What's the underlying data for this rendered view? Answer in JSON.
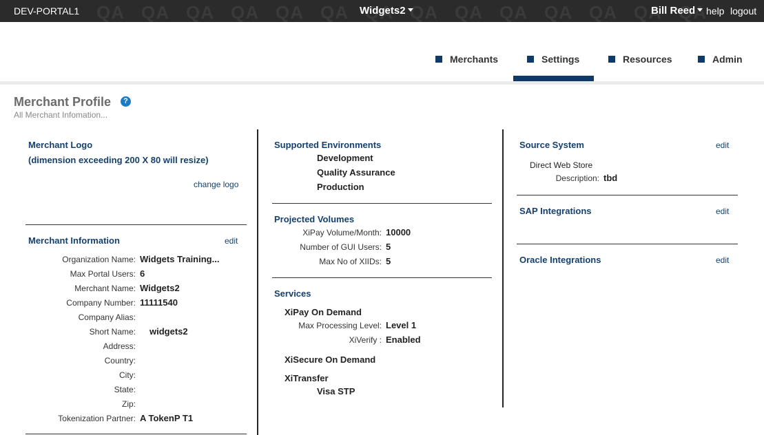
{
  "topbar": {
    "env": "DEV-PORTAL1",
    "watermark": [
      "QA",
      "QA",
      "QA",
      "QA",
      "QA",
      "QA",
      "QA",
      "QA",
      "QA",
      "QA",
      "QA",
      "QA",
      "QA",
      "QA"
    ],
    "app_name": "Widgets2",
    "user_name": "Bill Reed",
    "help": "help",
    "logout": "logout"
  },
  "nav": {
    "merchants": "Merchants",
    "settings": "Settings",
    "resources": "Resources",
    "admin": "Admin",
    "active": "Settings"
  },
  "page": {
    "title": "Merchant Profile",
    "help_glyph": "?",
    "subtitle": "All Merchant Infomation..."
  },
  "logo": {
    "title": "Merchant Logo",
    "note": "(dimension exceeding 200 X 80 will resize)",
    "change": "change logo"
  },
  "merchant_info": {
    "title": "Merchant Information",
    "edit": "edit",
    "fields": [
      {
        "label": "Organization Name:",
        "value": "Widgets Training..."
      },
      {
        "label": "Max Portal Users:",
        "value": "6"
      },
      {
        "label": "Merchant Name:",
        "value": "Widgets2"
      },
      {
        "label": "Company Number:",
        "value": "11111540"
      },
      {
        "label": "Company Alias:",
        "value": ""
      },
      {
        "label": "Short Name:",
        "value": "widgets2"
      },
      {
        "label": "Address:",
        "value": ""
      },
      {
        "label": "Country:",
        "value": ""
      },
      {
        "label": "City:",
        "value": ""
      },
      {
        "label": "State:",
        "value": ""
      },
      {
        "label": "Zip:",
        "value": ""
      },
      {
        "label": "Tokenization Partner:",
        "value": "A TokenP T1"
      }
    ]
  },
  "environments": {
    "title": "Supported Environments",
    "items": [
      "Development",
      "Quality Assurance",
      "Production"
    ]
  },
  "volumes": {
    "title": "Projected Volumes",
    "fields": [
      {
        "label": "XiPay Volume/Month:",
        "value": "10000"
      },
      {
        "label": "Number of GUI Users:",
        "value": "5"
      },
      {
        "label": "Max No of XIIDs:",
        "value": "5"
      }
    ]
  },
  "services": {
    "title": "Services",
    "xipay": {
      "name": "XiPay On Demand",
      "fields": [
        {
          "label": "Max Processing Level:",
          "value": "Level 1"
        },
        {
          "label": "XiVerify :",
          "value": "Enabled"
        }
      ]
    },
    "xisecure": {
      "name": "XiSecure On Demand"
    },
    "xitransfer": {
      "name": "XiTransfer",
      "items": [
        "Visa STP"
      ]
    }
  },
  "source_system": {
    "title": "Source System",
    "edit": "edit",
    "name": "Direct Web Store",
    "desc_label": "Description:",
    "desc_value": "tbd"
  },
  "sap": {
    "title": "SAP Integrations",
    "edit": "edit"
  },
  "oracle": {
    "title": "Oracle Integrations",
    "edit": "edit"
  }
}
